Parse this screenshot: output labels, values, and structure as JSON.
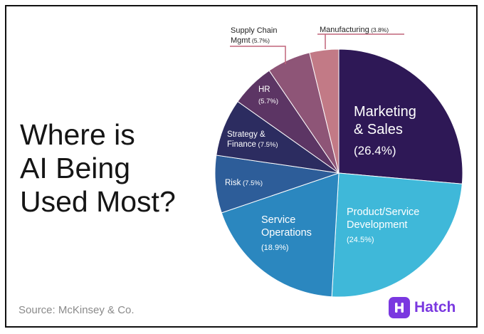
{
  "title": {
    "lines": [
      "Where is",
      "AI Being",
      "Used Most?"
    ]
  },
  "source": "Source: McKinsey & Co.",
  "logo": {
    "text": "Hatch",
    "color": "#7a38e0"
  },
  "chart_data": {
    "type": "pie",
    "title": "Where is AI Being Used Most?",
    "unit": "%",
    "slices": [
      {
        "name": "Marketing & Sales",
        "lines": [
          "Marketing",
          "& Sales"
        ],
        "pct_text": "(26.4%)",
        "value": 26.4,
        "color": "#2e1856"
      },
      {
        "name": "Product/Service Development",
        "lines": [
          "Product/Service",
          "Development"
        ],
        "pct_text": "(24.5%)",
        "value": 24.5,
        "color": "#3fb8d9"
      },
      {
        "name": "Service Operations",
        "lines": [
          "Service",
          "Operations"
        ],
        "pct_text": "(18.9%)",
        "value": 18.9,
        "color": "#2b87bf"
      },
      {
        "name": "Risk",
        "lines": [
          "Risk"
        ],
        "pct_text": "(7.5%)",
        "value": 7.5,
        "color": "#2d5d99"
      },
      {
        "name": "Strategy & Finance",
        "lines": [
          "Strategy &",
          "Finance"
        ],
        "pct_text": "(7.5%)",
        "value": 7.5,
        "color": "#2c2c60"
      },
      {
        "name": "HR",
        "lines": [
          "HR"
        ],
        "pct_text": "(5.7%)",
        "value": 5.7,
        "color": "#5c3564"
      },
      {
        "name": "Supply Chain Mgmt",
        "lines": [
          "Supply Chain",
          "Mgmt"
        ],
        "pct_text": "(5.7%)",
        "value": 5.7,
        "color": "#8e5577"
      },
      {
        "name": "Manufacturing",
        "lines": [
          "Manufacturing"
        ],
        "pct_text": "(3.8%)",
        "value": 3.8,
        "color": "#c27a86"
      }
    ]
  }
}
